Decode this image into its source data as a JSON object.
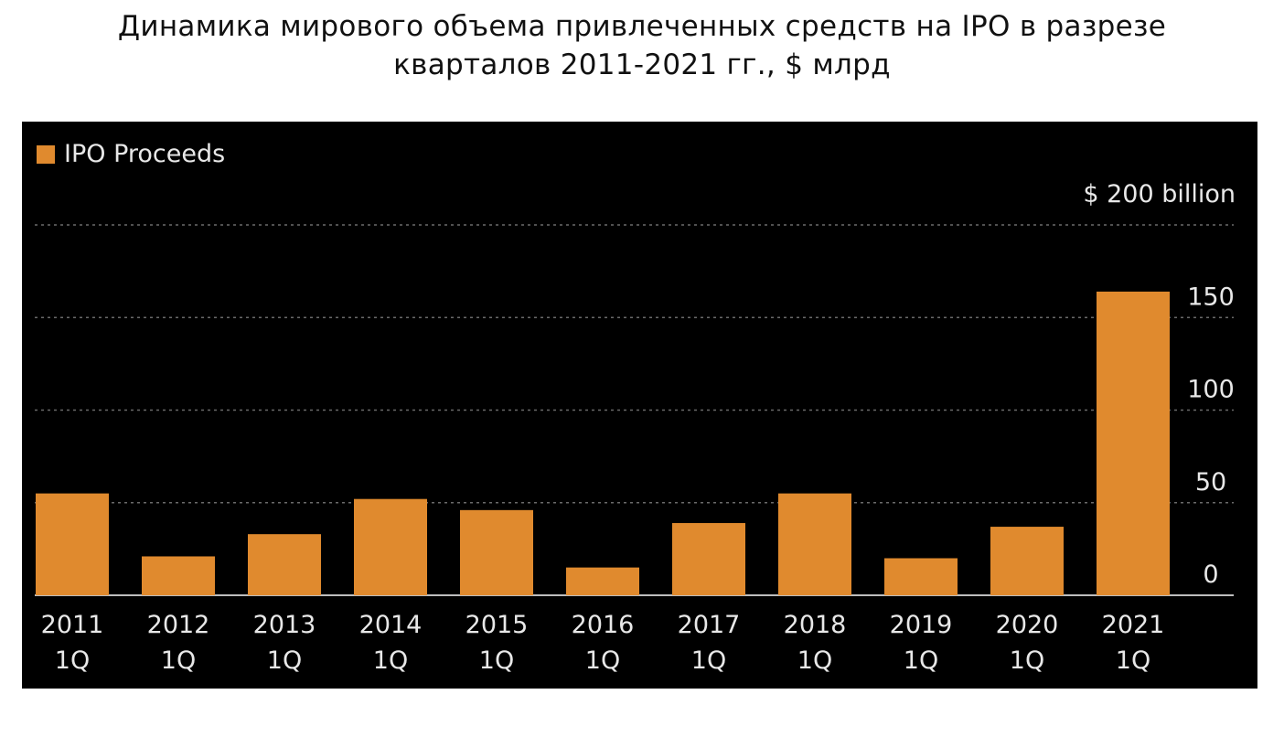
{
  "title": {
    "line1": "Динамика мирового объема привлеченных средств на IPO в разрезе",
    "line2": "кварталов 2011-2021 гг., $ млрд"
  },
  "colors": {
    "background": "#000000",
    "bar": "#e08a2e",
    "text": "#e8e8e8",
    "grid": "#6a6a6a"
  },
  "chart_data": {
    "type": "bar",
    "categories": [
      [
        "2011",
        "1Q"
      ],
      [
        "2012",
        "1Q"
      ],
      [
        "2013",
        "1Q"
      ],
      [
        "2014",
        "1Q"
      ],
      [
        "2015",
        "1Q"
      ],
      [
        "2016",
        "1Q"
      ],
      [
        "2017",
        "1Q"
      ],
      [
        "2018",
        "1Q"
      ],
      [
        "2019",
        "1Q"
      ],
      [
        "2020",
        "1Q"
      ],
      [
        "2021",
        "1Q"
      ]
    ],
    "series": [
      {
        "name": "IPO Proceeds",
        "values": [
          55,
          21,
          33,
          52,
          46,
          15,
          39,
          55,
          20,
          37,
          164
        ]
      }
    ],
    "unit_label": "$ 200  billion",
    "y_ticks": [
      {
        "value": 0,
        "label": "0"
      },
      {
        "value": 50,
        "label": "50"
      },
      {
        "value": 100,
        "label": "100"
      },
      {
        "value": 150,
        "label": "150"
      },
      {
        "value": 200,
        "label": ""
      }
    ],
    "ylim": [
      0,
      200
    ],
    "grid": true,
    "legend_position": "top-left"
  }
}
